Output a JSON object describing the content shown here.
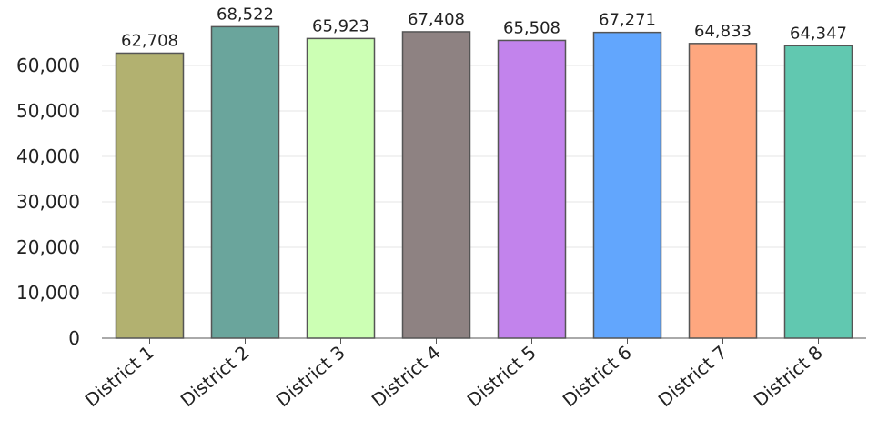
{
  "chart_data": {
    "type": "bar",
    "title": "",
    "xlabel": "",
    "ylabel": "",
    "categories": [
      "District 1",
      "District 2",
      "District 3",
      "District 4",
      "District 5",
      "District 6",
      "District 7",
      "District 8"
    ],
    "values": [
      62708,
      68522,
      65923,
      67408,
      65508,
      67271,
      64833,
      64347
    ],
    "value_labels": [
      "62,708",
      "68,522",
      "65,923",
      "67,408",
      "65,508",
      "67,271",
      "64,833",
      "64,347"
    ],
    "colors": [
      "#b2b170",
      "#6aa59c",
      "#ccffb4",
      "#8e8282",
      "#c283ec",
      "#62a6fd",
      "#fea77f",
      "#61c8b0"
    ],
    "ylim": [
      0,
      70000
    ],
    "yticks": [
      0,
      10000,
      20000,
      30000,
      40000,
      50000,
      60000
    ],
    "ytick_labels": [
      "0",
      "10,000",
      "20,000",
      "30,000",
      "40,000",
      "50,000",
      "60,000"
    ],
    "grid": true,
    "legend": "none"
  }
}
